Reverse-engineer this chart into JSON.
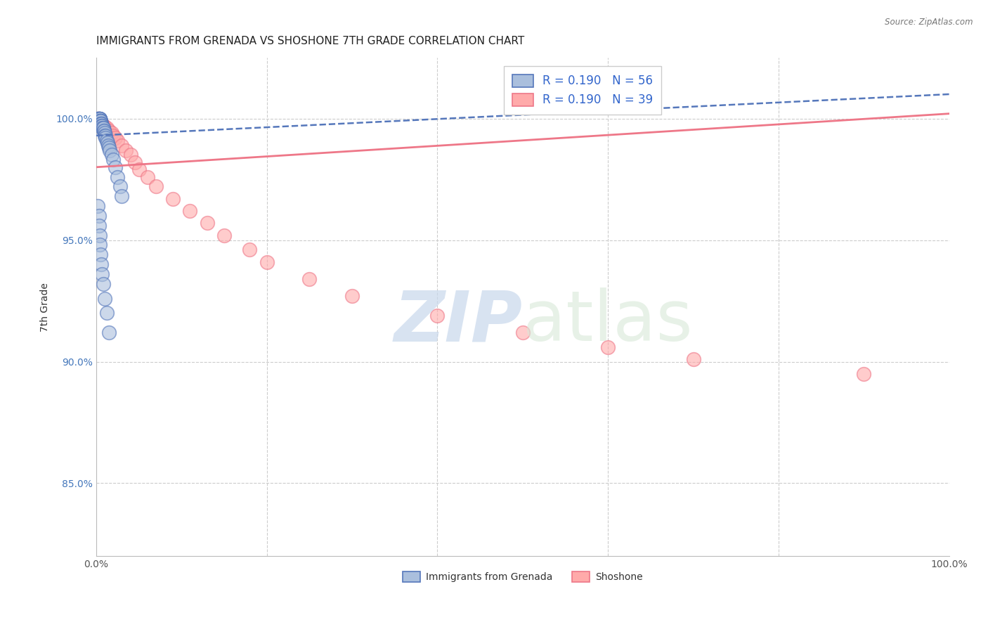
{
  "title": "IMMIGRANTS FROM GRENADA VS SHOSHONE 7TH GRADE CORRELATION CHART",
  "source": "Source: ZipAtlas.com",
  "ylabel": "7th Grade",
  "xlim": [
    0.0,
    1.0
  ],
  "ylim": [
    0.82,
    1.025
  ],
  "ytick_labels": [
    "85.0%",
    "90.0%",
    "95.0%",
    "100.0%"
  ],
  "ytick_values": [
    0.85,
    0.9,
    0.95,
    1.0
  ],
  "xtick_labels": [
    "0.0%",
    "100.0%"
  ],
  "xtick_values": [
    0.0,
    1.0
  ],
  "r_blue": 0.19,
  "n_blue": 56,
  "r_pink": 0.19,
  "n_pink": 39,
  "blue_fill": "#AABFDD",
  "blue_edge": "#5577BB",
  "pink_fill": "#FFAAAA",
  "pink_edge": "#EE7788",
  "blue_scatter_x": [
    0.002,
    0.002,
    0.002,
    0.003,
    0.003,
    0.003,
    0.003,
    0.003,
    0.004,
    0.004,
    0.004,
    0.004,
    0.004,
    0.005,
    0.005,
    0.005,
    0.005,
    0.005,
    0.006,
    0.006,
    0.006,
    0.006,
    0.007,
    0.007,
    0.007,
    0.008,
    0.008,
    0.009,
    0.009,
    0.01,
    0.01,
    0.011,
    0.011,
    0.012,
    0.013,
    0.014,
    0.015,
    0.016,
    0.018,
    0.02,
    0.022,
    0.025,
    0.028,
    0.03,
    0.002,
    0.003,
    0.003,
    0.004,
    0.004,
    0.005,
    0.006,
    0.007,
    0.008,
    0.01,
    0.012,
    0.015
  ],
  "blue_scatter_y": [
    1.0,
    1.0,
    1.0,
    1.0,
    1.0,
    1.0,
    1.0,
    1.0,
    1.0,
    1.0,
    1.0,
    1.0,
    0.999,
    0.999,
    0.999,
    0.999,
    0.999,
    0.998,
    0.998,
    0.998,
    0.998,
    0.997,
    0.997,
    0.997,
    0.996,
    0.996,
    0.996,
    0.995,
    0.995,
    0.994,
    0.993,
    0.993,
    0.992,
    0.991,
    0.99,
    0.989,
    0.988,
    0.987,
    0.985,
    0.983,
    0.98,
    0.976,
    0.972,
    0.968,
    0.964,
    0.96,
    0.956,
    0.952,
    0.948,
    0.944,
    0.94,
    0.936,
    0.932,
    0.926,
    0.92,
    0.912
  ],
  "pink_scatter_x": [
    0.002,
    0.002,
    0.003,
    0.003,
    0.004,
    0.004,
    0.005,
    0.005,
    0.006,
    0.007,
    0.008,
    0.009,
    0.01,
    0.012,
    0.015,
    0.018,
    0.02,
    0.022,
    0.025,
    0.03,
    0.035,
    0.04,
    0.045,
    0.05,
    0.06,
    0.07,
    0.09,
    0.11,
    0.13,
    0.15,
    0.18,
    0.2,
    0.25,
    0.3,
    0.4,
    0.5,
    0.6,
    0.7,
    0.9
  ],
  "pink_scatter_y": [
    1.0,
    1.0,
    1.0,
    0.999,
    0.999,
    0.999,
    0.999,
    0.998,
    0.998,
    0.998,
    0.997,
    0.997,
    0.996,
    0.996,
    0.995,
    0.994,
    0.993,
    0.992,
    0.991,
    0.989,
    0.987,
    0.985,
    0.982,
    0.979,
    0.976,
    0.972,
    0.967,
    0.962,
    0.957,
    0.952,
    0.946,
    0.941,
    0.934,
    0.927,
    0.919,
    0.912,
    0.906,
    0.901,
    0.895
  ],
  "blue_trend_x": [
    0.0,
    1.0
  ],
  "blue_trend_y": [
    0.993,
    1.01
  ],
  "pink_trend_x": [
    0.0,
    1.0
  ],
  "pink_trend_y": [
    0.98,
    1.002
  ],
  "watermark_zip": "ZIP",
  "watermark_atlas": "atlas",
  "legend_label_blue": "Immigrants from Grenada",
  "legend_label_pink": "Shoshone",
  "background_color": "#FFFFFF",
  "grid_color": "#CCCCCC"
}
